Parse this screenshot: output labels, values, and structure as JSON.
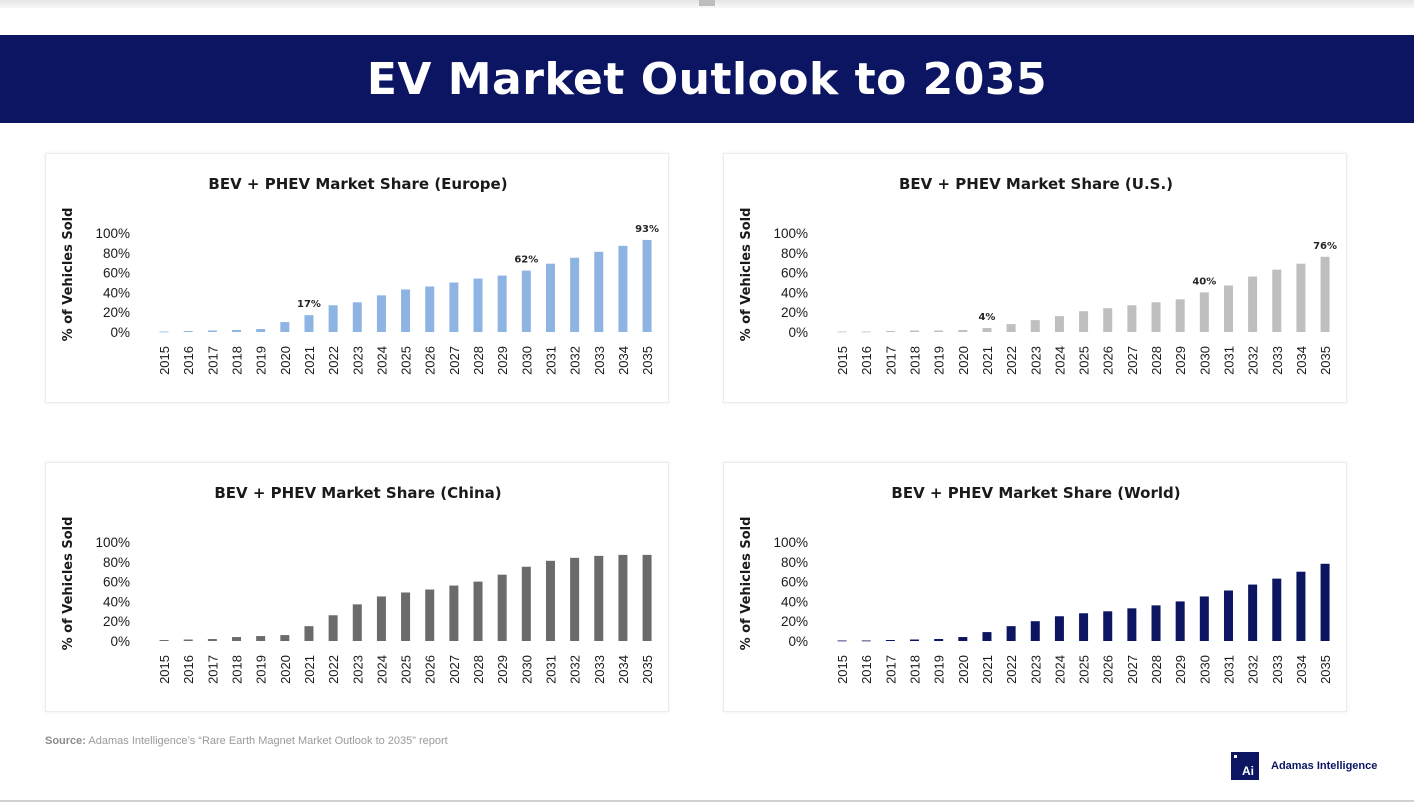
{
  "page": {
    "title": "EV Market Outlook to 2035",
    "source_label": "Source:",
    "source_text": "Adamas Intelligence’s “Rare Earth Magnet Market Outlook to 2035” report",
    "logo_mark": "Ai",
    "logo_name": "Adamas Intelligence",
    "banner_color": "#0b1561"
  },
  "chart_data": [
    {
      "id": "europe",
      "type": "bar",
      "title": "BEV + PHEV Market Share (Europe)",
      "xlabel": "",
      "ylabel": "% of Vehicles Sold",
      "ylim": [
        0,
        100
      ],
      "yticks": [
        "0%",
        "20%",
        "40%",
        "60%",
        "80%",
        "100%"
      ],
      "color": "#8eb4e3",
      "categories": [
        "2015",
        "2016",
        "2017",
        "2018",
        "2019",
        "2020",
        "2021",
        "2022",
        "2023",
        "2024",
        "2025",
        "2026",
        "2027",
        "2028",
        "2029",
        "2030",
        "2031",
        "2032",
        "2033",
        "2034",
        "2035"
      ],
      "values": [
        0.5,
        1,
        1.5,
        2,
        3,
        10,
        17,
        27,
        30,
        37,
        43,
        46,
        50,
        54,
        57,
        62,
        69,
        75,
        81,
        87,
        93
      ],
      "data_labels": [
        {
          "index": 6,
          "text": "17%"
        },
        {
          "index": 15,
          "text": "62%"
        },
        {
          "index": 20,
          "text": "93%"
        }
      ]
    },
    {
      "id": "us",
      "type": "bar",
      "title": "BEV + PHEV Market Share (U.S.)",
      "xlabel": "",
      "ylabel": "% of Vehicles Sold",
      "ylim": [
        0,
        100
      ],
      "yticks": [
        "0%",
        "20%",
        "40%",
        "60%",
        "80%",
        "100%"
      ],
      "color": "#bfbfbf",
      "categories": [
        "2015",
        "2016",
        "2017",
        "2018",
        "2019",
        "2020",
        "2021",
        "2022",
        "2023",
        "2024",
        "2025",
        "2026",
        "2027",
        "2028",
        "2029",
        "2030",
        "2031",
        "2032",
        "2033",
        "2034",
        "2035"
      ],
      "values": [
        0.5,
        0.5,
        1,
        1.5,
        1.5,
        2,
        4,
        8,
        12,
        16,
        21,
        24,
        27,
        30,
        33,
        40,
        47,
        56,
        63,
        69,
        76
      ],
      "data_labels": [
        {
          "index": 6,
          "text": "4%"
        },
        {
          "index": 15,
          "text": "40%"
        },
        {
          "index": 20,
          "text": "76%"
        }
      ]
    },
    {
      "id": "china",
      "type": "bar",
      "title": "BEV + PHEV Market Share (China)",
      "xlabel": "",
      "ylabel": "% of Vehicles Sold",
      "ylim": [
        0,
        100
      ],
      "yticks": [
        "0%",
        "20%",
        "40%",
        "60%",
        "80%",
        "100%"
      ],
      "color": "#6b6b6b",
      "categories": [
        "2015",
        "2016",
        "2017",
        "2018",
        "2019",
        "2020",
        "2021",
        "2022",
        "2023",
        "2024",
        "2025",
        "2026",
        "2027",
        "2028",
        "2029",
        "2030",
        "2031",
        "2032",
        "2033",
        "2034",
        "2035"
      ],
      "values": [
        1,
        1.5,
        2,
        4,
        5,
        6,
        15,
        26,
        37,
        45,
        49,
        52,
        56,
        60,
        67,
        75,
        81,
        84,
        86,
        87,
        87
      ],
      "data_labels": []
    },
    {
      "id": "world",
      "type": "bar",
      "title": "BEV + PHEV Market Share (World)",
      "xlabel": "",
      "ylabel": "% of Vehicles Sold",
      "ylim": [
        0,
        100
      ],
      "yticks": [
        "0%",
        "20%",
        "40%",
        "60%",
        "80%",
        "100%"
      ],
      "color": "#0b1561",
      "categories": [
        "2015",
        "2016",
        "2017",
        "2018",
        "2019",
        "2020",
        "2021",
        "2022",
        "2023",
        "2024",
        "2025",
        "2026",
        "2027",
        "2028",
        "2029",
        "2030",
        "2031",
        "2032",
        "2033",
        "2034",
        "2035"
      ],
      "values": [
        0.5,
        0.5,
        1,
        1.5,
        2,
        4,
        9,
        15,
        20,
        25,
        28,
        30,
        33,
        36,
        40,
        45,
        51,
        57,
        63,
        70,
        78
      ],
      "data_labels": []
    }
  ]
}
